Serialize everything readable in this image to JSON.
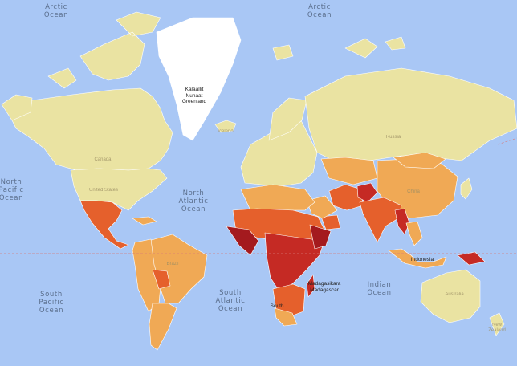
{
  "map": {
    "colors": {
      "ocean": "#a9c7f5",
      "land_lowest": "#eae3a2",
      "land_low": "#f0a955",
      "land_mid": "#e5602c",
      "land_high": "#c52a24",
      "land_highest": "#a41a1e",
      "no_data": "#ffffff",
      "border": "#ffffff",
      "equator": "#d77a7a"
    },
    "oceans": {
      "arctic_left": "Arctic Ocean",
      "arctic_right": "Arctic Ocean",
      "north_pacific": "North\nPacific\nOcean",
      "north_atlantic": "North\nAtlantic\nOcean",
      "south_pacific": "South\nPacific\nOcean",
      "south_atlantic": "South\nAtlantic\nOcean",
      "indian": "Indian\nOcean"
    },
    "places": {
      "greenland": "Kalaallit\nNunaat\nGreenland",
      "madagascar": "Madagasikara\nMadagascar",
      "south_africa": "South",
      "indonesia": "Indonesia",
      "iceland": "Iceland",
      "new_zealand": "New\nZealand"
    },
    "faint_places": {
      "canada": "Canada",
      "united_states": "United States",
      "russia": "Russia",
      "china": "China",
      "brazil": "Brazil",
      "australia": "Australia"
    }
  }
}
